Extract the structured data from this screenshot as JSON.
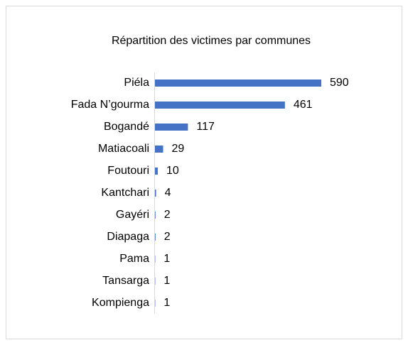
{
  "chart_data": {
    "type": "bar",
    "orientation": "horizontal",
    "title": "Répartition des victimes par communes",
    "categories": [
      "Piéla",
      "Fada N’gourma",
      "Bogandé",
      "Matiacoali",
      "Foutouri",
      "Kantchari",
      "Gayéri",
      "Diapaga",
      "Pama",
      "Tansarga",
      "Kompienga"
    ],
    "values": [
      590,
      461,
      117,
      29,
      10,
      4,
      2,
      2,
      1,
      1,
      1
    ],
    "color": "#4472c4"
  }
}
